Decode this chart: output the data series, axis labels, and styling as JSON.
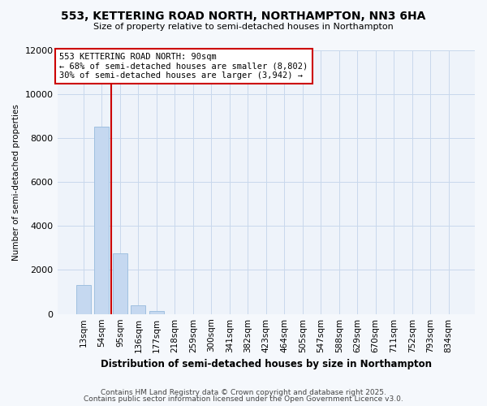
{
  "title": "553, KETTERING ROAD NORTH, NORTHAMPTON, NN3 6HA",
  "subtitle": "Size of property relative to semi-detached houses in Northampton",
  "xlabel": "Distribution of semi-detached houses by size in Northampton",
  "ylabel": "Number of semi-detached properties",
  "categories": [
    "13sqm",
    "54sqm",
    "95sqm",
    "136sqm",
    "177sqm",
    "218sqm",
    "259sqm",
    "300sqm",
    "341sqm",
    "382sqm",
    "423sqm",
    "464sqm",
    "505sqm",
    "547sqm",
    "588sqm",
    "629sqm",
    "670sqm",
    "711sqm",
    "752sqm",
    "793sqm",
    "834sqm"
  ],
  "values": [
    1300,
    8500,
    2750,
    390,
    130,
    0,
    0,
    0,
    0,
    0,
    0,
    0,
    0,
    0,
    0,
    0,
    0,
    0,
    0,
    0,
    0
  ],
  "bar_color": "#c5d8f0",
  "bar_edge_color": "#a0c0e0",
  "vline_x_index": 2,
  "vline_color": "#cc0000",
  "annotation_title": "553 KETTERING ROAD NORTH: 90sqm",
  "annotation_line2": "← 68% of semi-detached houses are smaller (8,802)",
  "annotation_line3": "30% of semi-detached houses are larger (3,942) →",
  "annotation_box_color": "#cc0000",
  "ylim": [
    0,
    12000
  ],
  "yticks": [
    0,
    2000,
    4000,
    6000,
    8000,
    10000,
    12000
  ],
  "footer1": "Contains HM Land Registry data © Crown copyright and database right 2025.",
  "footer2": "Contains public sector information licensed under the Open Government Licence v3.0.",
  "bg_color": "#f5f8fc",
  "plot_bg_color": "#eef3fa"
}
